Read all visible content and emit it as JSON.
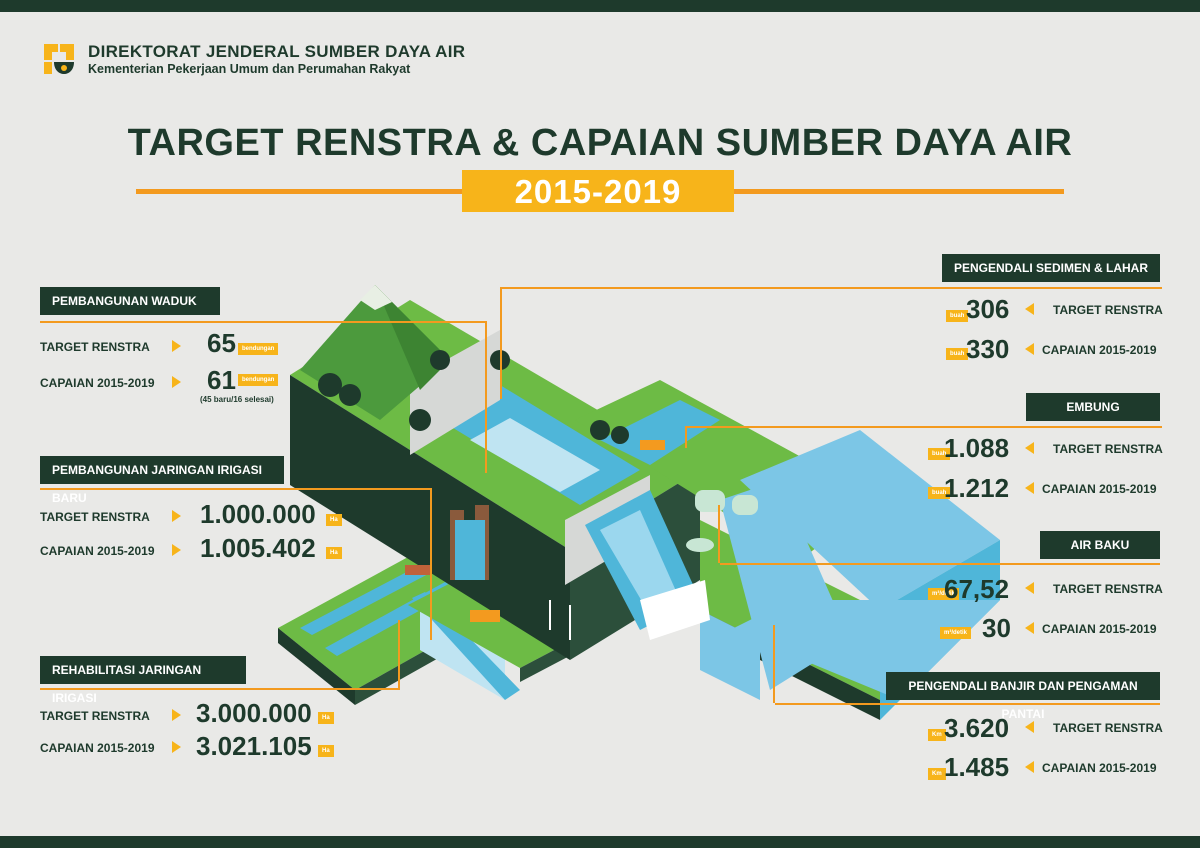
{
  "header": {
    "org_name": "DIREKTORAT JENDERAL SUMBER DAYA AIR",
    "org_sub": "Kementerian Pekerjaan Umum dan Perumahan Rakyat",
    "title": "TARGET RENSTRA & CAPAIAN SUMBER DAYA AIR",
    "years": "2015-2019"
  },
  "colors": {
    "dark_green": "#1e3a2c",
    "orange": "#f39a1f",
    "yellow": "#f7b41a",
    "background": "#e9e9e7"
  },
  "left": [
    {
      "title": "PEMBANGUNAN WADUK",
      "target_label": "TARGET RENSTRA",
      "target_value": "65",
      "target_unit": "bendungan",
      "capaian_label": "CAPAIAN 2015-2019",
      "capaian_value": "61",
      "capaian_unit": "bendungan",
      "note": "(45 baru/16 selesai)"
    },
    {
      "title": "PEMBANGUNAN JARINGAN IRIGASI BARU",
      "target_label": "TARGET RENSTRA",
      "target_value": "1.000.000",
      "target_unit": "Ha",
      "capaian_label": "CAPAIAN 2015-2019",
      "capaian_value": "1.005.402",
      "capaian_unit": "Ha"
    },
    {
      "title": "REHABILITASI JARINGAN IRIGASI",
      "target_label": "TARGET RENSTRA",
      "target_value": "3.000.000",
      "target_unit": "Ha",
      "capaian_label": "CAPAIAN 2015-2019",
      "capaian_value": "3.021.105",
      "capaian_unit": "Ha"
    }
  ],
  "right": [
    {
      "title": "PENGENDALI SEDIMEN & LAHAR",
      "target_label": "TARGET RENSTRA",
      "target_value": "306",
      "target_unit": "buah",
      "capaian_label": "CAPAIAN 2015-2019",
      "capaian_value": "330",
      "capaian_unit": "buah"
    },
    {
      "title": "EMBUNG",
      "target_label": "TARGET RENSTRA",
      "target_value": "1.088",
      "target_unit": "buah",
      "capaian_label": "CAPAIAN 2015-2019",
      "capaian_value": "1.212",
      "capaian_unit": "buah"
    },
    {
      "title": "AIR BAKU",
      "target_label": "TARGET RENSTRA",
      "target_value": "67,52",
      "target_unit": "m³/detik",
      "capaian_label": "CAPAIAN 2015-2019",
      "capaian_value": "30",
      "capaian_unit": "m³/detik"
    },
    {
      "title": "PENGENDALI BANJIR DAN PENGAMAN PANTAI",
      "target_label": "TARGET RENSTRA",
      "target_value": "3.620",
      "target_unit": "Km",
      "capaian_label": "CAPAIAN 2015-2019",
      "capaian_value": "1.485",
      "capaian_unit": "Km"
    }
  ]
}
